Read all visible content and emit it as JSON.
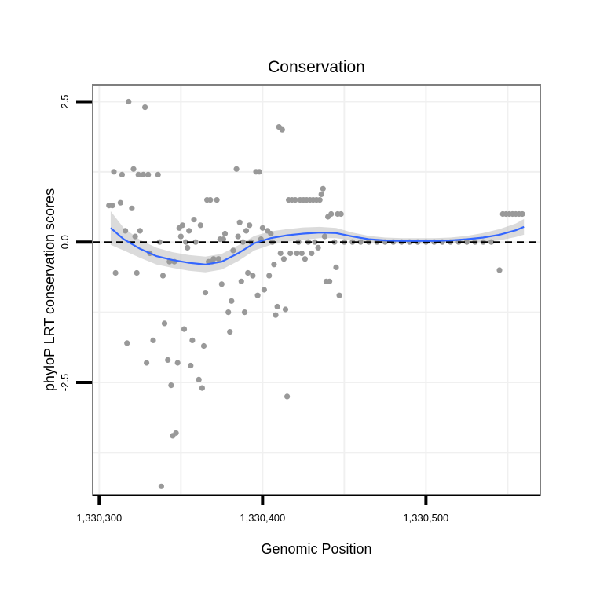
{
  "chart_data": {
    "type": "scatter",
    "title": "Conservation",
    "xlabel": "Genomic Position",
    "ylabel": "phyloP LRT conservation scores",
    "xlim": [
      1330296,
      1330570
    ],
    "ylim": [
      -4.5,
      2.8
    ],
    "x_ticks": [
      {
        "value": 1330300,
        "label": "1,330,300"
      },
      {
        "value": 1330400,
        "label": "1,330,400"
      },
      {
        "value": 1330500,
        "label": "1,330,500"
      }
    ],
    "y_ticks": [
      {
        "value": 2.5,
        "label": "2.5"
      },
      {
        "value": 0.0,
        "label": "0.0"
      },
      {
        "value": -2.5,
        "label": "-2.5"
      }
    ],
    "grid": true,
    "reference_line": {
      "y": 0,
      "style": "dashed"
    },
    "colors": {
      "points": "#999999",
      "smooth_line": "#3366ff",
      "confidence_band": "#bdbdbd",
      "panel_border": "#7f7f7f",
      "grid": "#f0f0f0"
    },
    "series": [
      {
        "points": [
          [
            1330306,
            0.65
          ],
          [
            1330308,
            0.65
          ],
          [
            1330309,
            1.25
          ],
          [
            1330310,
            -0.55
          ],
          [
            1330313,
            0.7
          ],
          [
            1330314,
            1.2
          ],
          [
            1330316,
            0.2
          ],
          [
            1330317,
            -1.8
          ],
          [
            1330318,
            2.5
          ],
          [
            1330320,
            0.6
          ],
          [
            1330321,
            1.3
          ],
          [
            1330322,
            0.1
          ],
          [
            1330323,
            -0.55
          ],
          [
            1330324,
            1.2
          ],
          [
            1330325,
            0.2
          ],
          [
            1330327,
            1.2
          ],
          [
            1330328,
            2.4
          ],
          [
            1330329,
            -2.15
          ],
          [
            1330330,
            1.2
          ],
          [
            1330331,
            -0.2
          ],
          [
            1330333,
            -1.75
          ],
          [
            1330336,
            1.2
          ],
          [
            1330337,
            0.0
          ],
          [
            1330338,
            -4.35
          ],
          [
            1330339,
            -0.6
          ],
          [
            1330340,
            -1.45
          ],
          [
            1330342,
            -2.1
          ],
          [
            1330343,
            -0.35
          ],
          [
            1330344,
            -2.55
          ],
          [
            1330345,
            -3.45
          ],
          [
            1330346,
            -0.35
          ],
          [
            1330347,
            -3.4
          ],
          [
            1330348,
            -2.15
          ],
          [
            1330349,
            0.25
          ],
          [
            1330350,
            0.1
          ],
          [
            1330351,
            0.3
          ],
          [
            1330352,
            -1.55
          ],
          [
            1330353,
            0.0
          ],
          [
            1330354,
            -0.1
          ],
          [
            1330355,
            0.2
          ],
          [
            1330356,
            -2.2
          ],
          [
            1330357,
            -1.75
          ],
          [
            1330358,
            0.4
          ],
          [
            1330359,
            0.0
          ],
          [
            1330361,
            -2.45
          ],
          [
            1330362,
            0.3
          ],
          [
            1330363,
            -2.6
          ],
          [
            1330364,
            -1.85
          ],
          [
            1330365,
            -0.9
          ],
          [
            1330366,
            0.75
          ],
          [
            1330367,
            -0.35
          ],
          [
            1330368,
            0.75
          ],
          [
            1330369,
            -0.35
          ],
          [
            1330370,
            -0.3
          ],
          [
            1330372,
            0.75
          ],
          [
            1330373,
            -0.3
          ],
          [
            1330374,
            0.05
          ],
          [
            1330375,
            -0.75
          ],
          [
            1330376,
            0.05
          ],
          [
            1330377,
            0.15
          ],
          [
            1330379,
            -1.25
          ],
          [
            1330380,
            -1.6
          ],
          [
            1330381,
            -1.05
          ],
          [
            1330382,
            -0.15
          ],
          [
            1330384,
            1.3
          ],
          [
            1330385,
            0.1
          ],
          [
            1330386,
            0.35
          ],
          [
            1330387,
            -0.7
          ],
          [
            1330388,
            0.0
          ],
          [
            1330389,
            -1.25
          ],
          [
            1330390,
            0.2
          ],
          [
            1330391,
            -0.55
          ],
          [
            1330392,
            0.3
          ],
          [
            1330393,
            0.0
          ],
          [
            1330394,
            -0.6
          ],
          [
            1330396,
            1.25
          ],
          [
            1330397,
            -0.95
          ],
          [
            1330398,
            1.25
          ],
          [
            1330399,
            0.05
          ],
          [
            1330400,
            0.25
          ],
          [
            1330401,
            -0.85
          ],
          [
            1330403,
            0.2
          ],
          [
            1330404,
            -0.6
          ],
          [
            1330405,
            0.15
          ],
          [
            1330406,
            0.0
          ],
          [
            1330407,
            -0.4
          ],
          [
            1330408,
            -1.3
          ],
          [
            1330409,
            -1.15
          ],
          [
            1330410,
            2.05
          ],
          [
            1330411,
            -0.2
          ],
          [
            1330412,
            2.0
          ],
          [
            1330413,
            -0.3
          ],
          [
            1330414,
            -1.2
          ],
          [
            1330415,
            -2.75
          ],
          [
            1330416,
            0.75
          ],
          [
            1330417,
            -0.2
          ],
          [
            1330418,
            0.75
          ],
          [
            1330420,
            0.75
          ],
          [
            1330421,
            -0.2
          ],
          [
            1330422,
            0.0
          ],
          [
            1330423,
            0.75
          ],
          [
            1330424,
            -0.2
          ],
          [
            1330425,
            0.75
          ],
          [
            1330426,
            -0.3
          ],
          [
            1330427,
            0.75
          ],
          [
            1330428,
            0.0
          ],
          [
            1330429,
            0.75
          ],
          [
            1330430,
            -0.2
          ],
          [
            1330431,
            0.75
          ],
          [
            1330432,
            0.0
          ],
          [
            1330433,
            0.75
          ],
          [
            1330434,
            -0.1
          ],
          [
            1330435,
            0.75
          ],
          [
            1330436,
            0.85
          ],
          [
            1330437,
            0.95
          ],
          [
            1330438,
            0.1
          ],
          [
            1330439,
            -0.7
          ],
          [
            1330440,
            0.45
          ],
          [
            1330441,
            -0.7
          ],
          [
            1330442,
            0.5
          ],
          [
            1330444,
            0.0
          ],
          [
            1330445,
            -0.45
          ],
          [
            1330446,
            0.5
          ],
          [
            1330447,
            -0.95
          ],
          [
            1330448,
            0.5
          ],
          [
            1330450,
            0.0
          ],
          [
            1330455,
            0.0
          ],
          [
            1330460,
            0.0
          ],
          [
            1330465,
            0.0
          ],
          [
            1330470,
            0.0
          ],
          [
            1330475,
            0.0
          ],
          [
            1330480,
            0.0
          ],
          [
            1330485,
            0.0
          ],
          [
            1330490,
            0.0
          ],
          [
            1330495,
            0.0
          ],
          [
            1330500,
            0.0
          ],
          [
            1330505,
            0.0
          ],
          [
            1330510,
            0.0
          ],
          [
            1330515,
            0.0
          ],
          [
            1330520,
            0.0
          ],
          [
            1330525,
            0.0
          ],
          [
            1330530,
            0.0
          ],
          [
            1330535,
            0.0
          ],
          [
            1330540,
            0.0
          ],
          [
            1330545,
            -0.5
          ],
          [
            1330547,
            0.5
          ],
          [
            1330549,
            0.5
          ],
          [
            1330551,
            0.5
          ],
          [
            1330553,
            0.5
          ],
          [
            1330555,
            0.5
          ],
          [
            1330557,
            0.5
          ],
          [
            1330559,
            0.5
          ]
        ]
      }
    ],
    "smooth": {
      "x": [
        1330307,
        1330315,
        1330325,
        1330335,
        1330345,
        1330355,
        1330365,
        1330375,
        1330385,
        1330395,
        1330405,
        1330415,
        1330425,
        1330435,
        1330445,
        1330455,
        1330465,
        1330475,
        1330485,
        1330495,
        1330505,
        1330515,
        1330525,
        1330535,
        1330545,
        1330555,
        1330560
      ],
      "y": [
        0.25,
        0.05,
        -0.12,
        -0.25,
        -0.32,
        -0.37,
        -0.4,
        -0.35,
        -0.2,
        -0.02,
        0.07,
        0.12,
        0.15,
        0.17,
        0.16,
        0.1,
        0.05,
        0.03,
        0.02,
        0.02,
        0.02,
        0.03,
        0.05,
        0.08,
        0.13,
        0.21,
        0.27
      ],
      "se": [
        0.3,
        0.2,
        0.16,
        0.15,
        0.14,
        0.14,
        0.14,
        0.14,
        0.14,
        0.13,
        0.12,
        0.11,
        0.11,
        0.1,
        0.09,
        0.07,
        0.06,
        0.05,
        0.05,
        0.05,
        0.05,
        0.05,
        0.06,
        0.08,
        0.1,
        0.12,
        0.14
      ]
    }
  }
}
